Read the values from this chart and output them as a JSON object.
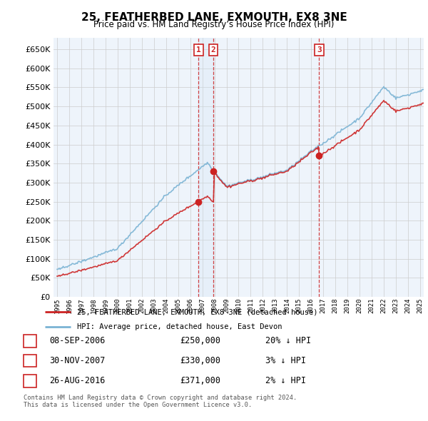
{
  "title": "25, FEATHERBED LANE, EXMOUTH, EX8 3NE",
  "subtitle": "Price paid vs. HM Land Registry’s House Price Index (HPI)",
  "ylabel_ticks": [
    0,
    50000,
    100000,
    150000,
    200000,
    250000,
    300000,
    350000,
    400000,
    450000,
    500000,
    550000,
    600000,
    650000
  ],
  "ylim": [
    0,
    680000
  ],
  "xlim": [
    1994.7,
    2025.3
  ],
  "sale_dates_dec": [
    2006.69,
    2007.92,
    2016.66
  ],
  "sale_prices": [
    250000,
    330000,
    371000
  ],
  "sale_labels": [
    "1",
    "2",
    "3"
  ],
  "sale_info": [
    [
      "1",
      "08-SEP-2006",
      "£250,000",
      "20% ↓ HPI"
    ],
    [
      "2",
      "30-NOV-2007",
      "£330,000",
      "3% ↓ HPI"
    ],
    [
      "3",
      "26-AUG-2016",
      "£371,000",
      "2% ↓ HPI"
    ]
  ],
  "hpi_color": "#7ab3d4",
  "price_color": "#cc2222",
  "dashed_color": "#cc2222",
  "grid_color": "#cccccc",
  "background_color": "#ffffff",
  "chart_bg": "#eef4fb",
  "shade_color": "#d0e4f5",
  "legend_line1": "25, FEATHERBED LANE, EXMOUTH, EX8 3NE (detached house)",
  "legend_line2": "HPI: Average price, detached house, East Devon",
  "footer1": "Contains HM Land Registry data © Crown copyright and database right 2024.",
  "footer2": "This data is licensed under the Open Government Licence v3.0.",
  "scale1": 3.47,
  "scale2": 3.37,
  "scale3": 2.92
}
